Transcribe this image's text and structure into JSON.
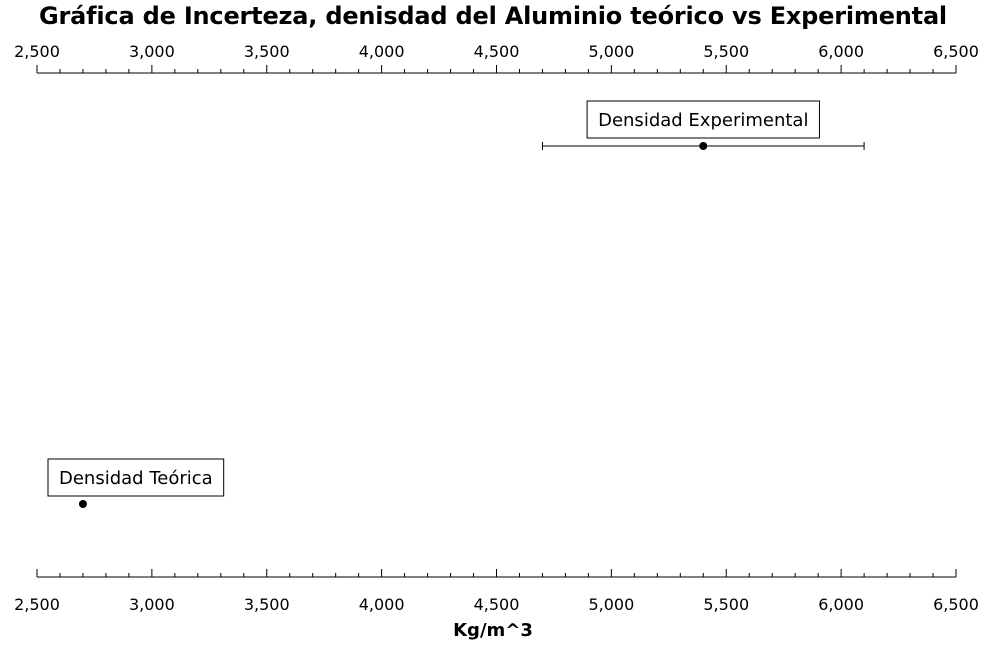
{
  "chart_data": {
    "type": "scatter",
    "title": "Gráfica de Incerteza, denisdad del Aluminio teórico vs Experimental",
    "xlabel": "Kg/m^3",
    "ylabel": "",
    "xlim": [
      2500,
      6500
    ],
    "x_major_ticks": [
      2500,
      3000,
      3500,
      4000,
      4500,
      5000,
      5500,
      6000,
      6500
    ],
    "x_tick_labels": [
      "2,500",
      "3,000",
      "3,500",
      "4,000",
      "4,500",
      "5,000",
      "5,500",
      "6,000",
      "6,500"
    ],
    "x_minor_step": 100,
    "axes_positions": [
      "top",
      "bottom"
    ],
    "grid": false,
    "points": [
      {
        "label": "Densidad Experimental",
        "x": 5400,
        "xerr_low": 4700,
        "xerr_high": 6100,
        "row": 0
      },
      {
        "label": "Densidad Teórica",
        "x": 2700,
        "row": 1
      }
    ],
    "marker_color": "#000000"
  }
}
